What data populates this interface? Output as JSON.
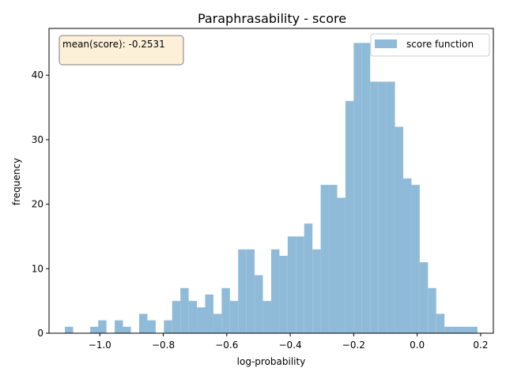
{
  "chart_data": {
    "type": "bar",
    "title": "Paraphrasability - score",
    "xlabel": "log-probability",
    "ylabel": "frequency",
    "xlim": [
      -1.16,
      0.24
    ],
    "ylim": [
      0,
      47.25
    ],
    "bin_width": 0.026,
    "x_ticks": [
      -1.0,
      -0.8,
      -0.6,
      -0.4,
      -0.2,
      0.0,
      0.2
    ],
    "x_tick_labels": [
      "−1.0",
      "−0.8",
      "−0.6",
      "−0.4",
      "−0.2",
      "0.0",
      "0.2"
    ],
    "y_ticks": [
      0,
      10,
      20,
      30,
      40
    ],
    "y_tick_labels": [
      "0",
      "10",
      "20",
      "30",
      "40"
    ],
    "grid": false,
    "legend_position": "top-right",
    "series": [
      {
        "name": "score function",
        "color": "#8fbbd9",
        "bins": [
          {
            "x": -1.11,
            "count": 1
          },
          {
            "x": -1.03,
            "count": 1
          },
          {
            "x": -1.005,
            "count": 2
          },
          {
            "x": -0.953,
            "count": 2
          },
          {
            "x": -0.928,
            "count": 1
          },
          {
            "x": -0.876,
            "count": 3
          },
          {
            "x": -0.85,
            "count": 2
          },
          {
            "x": -0.798,
            "count": 2
          },
          {
            "x": -0.772,
            "count": 5
          },
          {
            "x": -0.746,
            "count": 7
          },
          {
            "x": -0.72,
            "count": 5
          },
          {
            "x": -0.694,
            "count": 4
          },
          {
            "x": -0.668,
            "count": 6
          },
          {
            "x": -0.642,
            "count": 3
          },
          {
            "x": -0.616,
            "count": 7
          },
          {
            "x": -0.59,
            "count": 5
          },
          {
            "x": -0.564,
            "count": 13
          },
          {
            "x": -0.538,
            "count": 13
          },
          {
            "x": -0.512,
            "count": 9
          },
          {
            "x": -0.486,
            "count": 5
          },
          {
            "x": -0.46,
            "count": 13
          },
          {
            "x": -0.434,
            "count": 12
          },
          {
            "x": -0.408,
            "count": 15
          },
          {
            "x": -0.382,
            "count": 15
          },
          {
            "x": -0.356,
            "count": 17
          },
          {
            "x": -0.33,
            "count": 13
          },
          {
            "x": -0.304,
            "count": 23
          },
          {
            "x": -0.278,
            "count": 23
          },
          {
            "x": -0.252,
            "count": 21
          },
          {
            "x": -0.226,
            "count": 36
          },
          {
            "x": -0.2,
            "count": 45
          },
          {
            "x": -0.174,
            "count": 45
          },
          {
            "x": -0.148,
            "count": 39
          },
          {
            "x": -0.122,
            "count": 39
          },
          {
            "x": -0.096,
            "count": 39
          },
          {
            "x": -0.07,
            "count": 32
          },
          {
            "x": -0.044,
            "count": 24
          },
          {
            "x": -0.018,
            "count": 23
          },
          {
            "x": 0.008,
            "count": 11
          },
          {
            "x": 0.034,
            "count": 7
          },
          {
            "x": 0.06,
            "count": 3
          },
          {
            "x": 0.086,
            "count": 1
          },
          {
            "x": 0.112,
            "count": 1
          },
          {
            "x": 0.138,
            "count": 1
          },
          {
            "x": 0.164,
            "count": 1
          }
        ]
      }
    ],
    "annotation": {
      "text": "mean(score): -0.2531",
      "position": "top-left",
      "background": "#fdf0d8",
      "border_color": "#7f7f7f"
    }
  }
}
